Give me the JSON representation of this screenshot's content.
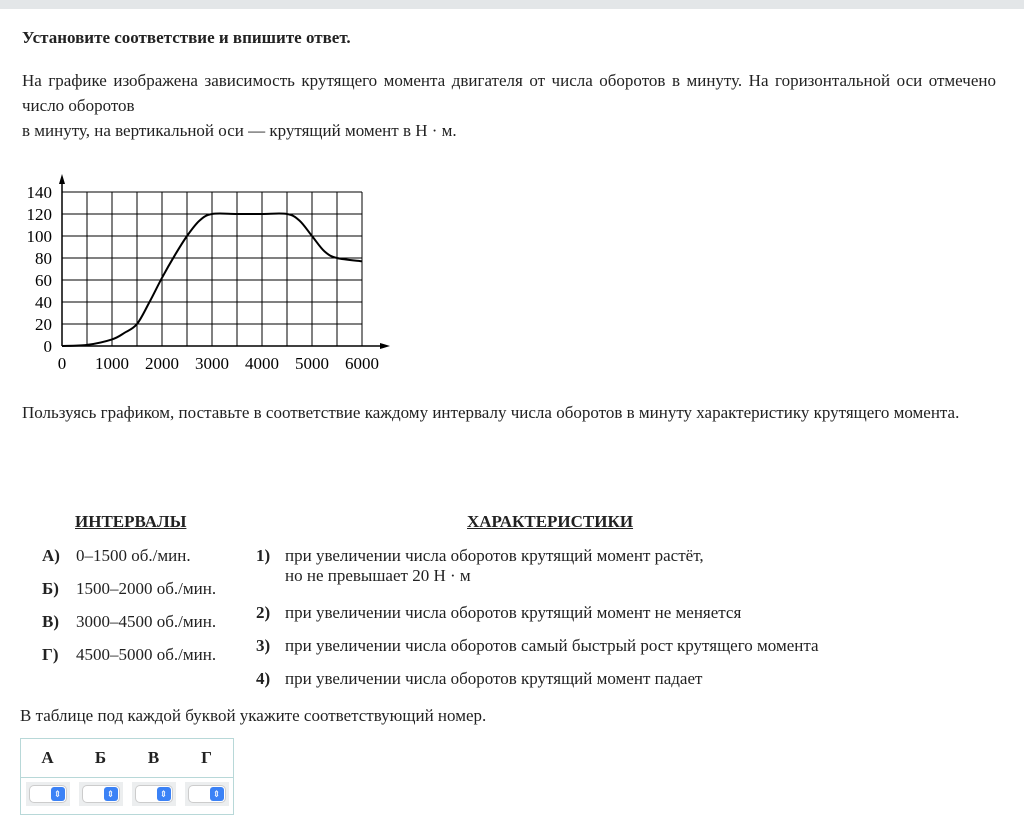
{
  "task": {
    "title": "Установите соответствие и впишите ответ.",
    "intro_line1": "На графике изображена зависимость крутящего момента двигателя от числа оборотов в минуту. На горизонтальной оси отмечено число оборотов",
    "intro_line2": "в минуту, на вертикальной оси —  крутящий момент в Н · м.",
    "question": "Пользуясь графиком, поставьте в соответствие каждому интервалу числа оборотов в минуту характеристику крутящего момента.",
    "table_instruction": "В таблице под каждой буквой укажите соответствующий номер."
  },
  "chart_data": {
    "type": "line",
    "x": [
      0,
      500,
      1000,
      1250,
      1500,
      1750,
      2000,
      2250,
      2500,
      2750,
      3000,
      3500,
      4000,
      4500,
      4750,
      5000,
      5250,
      5500,
      6000
    ],
    "y": [
      0,
      1,
      6,
      12,
      20,
      40,
      62,
      82,
      100,
      114,
      120,
      120,
      120,
      120,
      114,
      100,
      86,
      80,
      77
    ],
    "xlim": [
      0,
      6000
    ],
    "ylim": [
      0,
      140
    ],
    "grid": true,
    "x_ticks": [
      "0",
      "1000",
      "2000",
      "3000",
      "4000",
      "5000",
      "6000"
    ],
    "y_ticks": [
      "0",
      "20",
      "40",
      "60",
      "80",
      "100",
      "120",
      "140"
    ]
  },
  "intervals": {
    "header": "ИНТЕРВАЛЫ",
    "items": [
      {
        "letter": "А)",
        "text": "0–1500 об./мин."
      },
      {
        "letter": "Б)",
        "text": "1500–2000 об./мин."
      },
      {
        "letter": "В)",
        "text": "3000–4500 об./мин."
      },
      {
        "letter": "Г)",
        "text": "4500–5000 об./мин."
      }
    ]
  },
  "characteristics": {
    "header": "ХАРАКТЕРИСТИКИ",
    "items": [
      {
        "num": "1)",
        "text": "при увеличении числа оборотов крутящий момент растёт,",
        "text2": "но не превышает 20 Н · м"
      },
      {
        "num": "2)",
        "text": "при увеличении числа оборотов крутящий момент не меняется"
      },
      {
        "num": "3)",
        "text": "при увеличении числа оборотов самый быстрый рост крутящего момента"
      },
      {
        "num": "4)",
        "text": "при увеличении числа оборотов крутящий момент падает"
      }
    ]
  },
  "answer_table": {
    "letters": [
      "А",
      "Б",
      "В",
      "Г"
    ],
    "values": [
      "",
      "",
      "",
      ""
    ]
  },
  "colors": {
    "select_accent": "#3b82f6",
    "table_border": "#b8d8d8"
  }
}
